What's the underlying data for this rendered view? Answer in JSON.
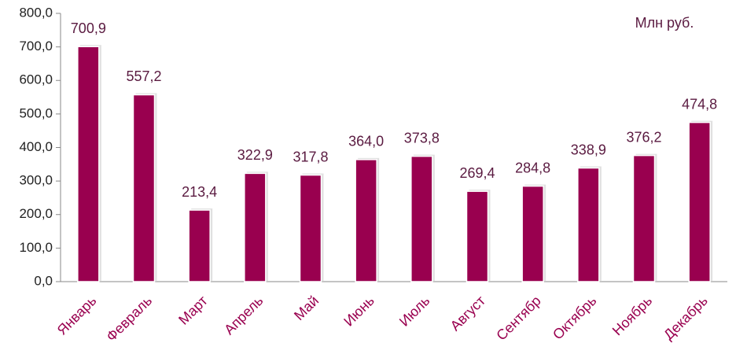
{
  "chart_data": {
    "type": "bar",
    "annotation": "Млн руб.",
    "categories": [
      "Январь",
      "Февраль",
      "Март",
      "Апрель",
      "Май",
      "Июнь",
      "Июль",
      "Август",
      "Сентябр",
      "Октябрь",
      "Ноябрь",
      "Декабрь"
    ],
    "values": [
      700.9,
      557.2,
      213.4,
      322.9,
      317.8,
      364.0,
      373.8,
      269.4,
      284.8,
      338.9,
      376.2,
      474.8
    ],
    "value_labels": [
      "700,9",
      "557,2",
      "213,4",
      "322,9",
      "317,8",
      "364,0",
      "373,8",
      "269,4",
      "284,8",
      "338,9",
      "376,2",
      "474,8"
    ],
    "color": "#99004f",
    "ylim": [
      0,
      800
    ],
    "yticks": [
      {
        "value": 0,
        "label": "0,0"
      },
      {
        "value": 100,
        "label": "100,0"
      },
      {
        "value": 200,
        "label": "200,0"
      },
      {
        "value": 300,
        "label": "300,0"
      },
      {
        "value": 400,
        "label": "400,0"
      },
      {
        "value": 500,
        "label": "500,0"
      },
      {
        "value": 600,
        "label": "600,0"
      },
      {
        "value": 700,
        "label": "700,0"
      },
      {
        "value": 800,
        "label": "800,0"
      }
    ],
    "grid": false
  }
}
